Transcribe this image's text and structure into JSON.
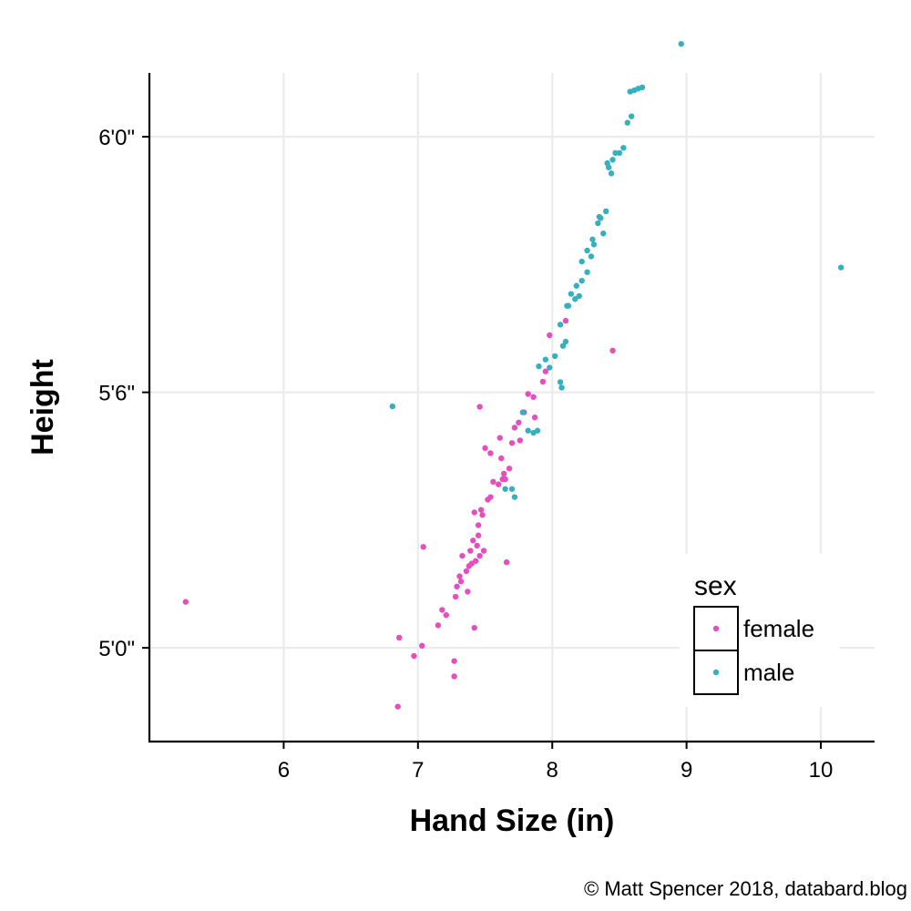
{
  "chart_data": {
    "type": "scatter",
    "title": "",
    "xlabel": "Hand Size (in)",
    "ylabel": "Height",
    "xlim": [
      5.0,
      10.4
    ],
    "ylim": [
      57.8,
      73.5
    ],
    "x_ticks": [
      6,
      7,
      8,
      9,
      10
    ],
    "x_tick_labels": [
      "6",
      "7",
      "8",
      "9",
      "10"
    ],
    "y_ticks": [
      60,
      66,
      72
    ],
    "y_tick_labels": [
      "5'0\"",
      "5'6\"",
      "6'0\""
    ],
    "grid": true,
    "legend": {
      "title": "sex",
      "placement": "inside-bottom-right"
    },
    "series": [
      {
        "name": "female",
        "color": "#E64DBF",
        "points": [
          [
            5.27,
            61.08
          ],
          [
            6.85,
            58.62
          ],
          [
            6.86,
            60.24
          ],
          [
            6.97,
            59.81
          ],
          [
            7.03,
            60.05
          ],
          [
            7.04,
            62.37
          ],
          [
            7.15,
            60.53
          ],
          [
            7.18,
            60.89
          ],
          [
            7.21,
            60.77
          ],
          [
            7.27,
            59.69
          ],
          [
            7.27,
            59.33
          ],
          [
            7.28,
            61.2
          ],
          [
            7.29,
            61.44
          ],
          [
            7.31,
            61.68
          ],
          [
            7.32,
            61.56
          ],
          [
            7.33,
            62.16
          ],
          [
            7.36,
            61.8
          ],
          [
            7.37,
            61.32
          ],
          [
            7.38,
            61.92
          ],
          [
            7.39,
            62.28
          ],
          [
            7.4,
            61.98
          ],
          [
            7.41,
            62.52
          ],
          [
            7.42,
            60.47
          ],
          [
            7.42,
            63.18
          ],
          [
            7.43,
            62.04
          ],
          [
            7.44,
            62.4
          ],
          [
            7.45,
            62.64
          ],
          [
            7.45,
            62.88
          ],
          [
            7.46,
            62.16
          ],
          [
            7.47,
            63.24
          ],
          [
            7.46,
            65.66
          ],
          [
            7.48,
            63.12
          ],
          [
            7.49,
            62.28
          ],
          [
            7.5,
            64.69
          ],
          [
            7.52,
            63.48
          ],
          [
            7.54,
            63.54
          ],
          [
            7.54,
            64.57
          ],
          [
            7.56,
            63.9
          ],
          [
            7.6,
            63.84
          ],
          [
            7.61,
            64.93
          ],
          [
            7.62,
            64.45
          ],
          [
            7.63,
            63.96
          ],
          [
            7.64,
            64.09
          ],
          [
            7.65,
            63.96
          ],
          [
            7.66,
            62.01
          ],
          [
            7.68,
            64.21
          ],
          [
            7.7,
            64.81
          ],
          [
            7.72,
            65.17
          ],
          [
            7.76,
            64.87
          ],
          [
            7.75,
            65.29
          ],
          [
            7.79,
            65.53
          ],
          [
            7.82,
            65.96
          ],
          [
            7.86,
            65.89
          ],
          [
            7.87,
            65.41
          ],
          [
            7.93,
            66.25
          ],
          [
            7.95,
            66.49
          ],
          [
            7.98,
            67.34
          ],
          [
            8.1,
            67.68
          ],
          [
            8.45,
            66.98
          ]
        ]
      },
      {
        "name": "male",
        "color": "#36AFBF",
        "points": [
          [
            6.81,
            65.67
          ],
          [
            7.65,
            63.73
          ],
          [
            7.7,
            63.73
          ],
          [
            7.72,
            63.54
          ],
          [
            7.78,
            65.53
          ],
          [
            7.82,
            65.1
          ],
          [
            7.86,
            65.05
          ],
          [
            7.89,
            65.1
          ],
          [
            7.9,
            66.61
          ],
          [
            7.95,
            66.77
          ],
          [
            7.98,
            66.58
          ],
          [
            8.02,
            66.85
          ],
          [
            8.06,
            66.24
          ],
          [
            8.07,
            66.11
          ],
          [
            8.08,
            67.09
          ],
          [
            8.06,
            67.59
          ],
          [
            8.1,
            67.19
          ],
          [
            8.12,
            68.03
          ],
          [
            8.11,
            68.03
          ],
          [
            8.14,
            68.31
          ],
          [
            8.18,
            68.5
          ],
          [
            8.22,
            68.62
          ],
          [
            8.26,
            68.82
          ],
          [
            8.29,
            69.19
          ],
          [
            8.31,
            69.47
          ],
          [
            8.34,
            69.97
          ],
          [
            8.36,
            70.09
          ],
          [
            8.38,
            69.73
          ],
          [
            8.4,
            70.25
          ],
          [
            8.42,
            71.28
          ],
          [
            8.44,
            71.14
          ],
          [
            8.47,
            71.62
          ],
          [
            8.5,
            71.62
          ],
          [
            8.53,
            71.74
          ],
          [
            8.56,
            72.33
          ],
          [
            8.58,
            73.06
          ],
          [
            8.61,
            73.09
          ],
          [
            8.64,
            73.13
          ],
          [
            8.67,
            73.16
          ],
          [
            8.59,
            72.48
          ],
          [
            8.45,
            71.46
          ],
          [
            8.41,
            71.38
          ],
          [
            8.26,
            69.33
          ],
          [
            8.22,
            69.07
          ],
          [
            8.17,
            68.19
          ],
          [
            8.2,
            68.26
          ],
          [
            8.3,
            69.59
          ],
          [
            8.35,
            70.12
          ],
          [
            8.96,
            74.18
          ],
          [
            10.15,
            68.93
          ]
        ]
      }
    ]
  },
  "footer": {
    "credit": "© Matt Spencer 2018, databard.blog"
  }
}
